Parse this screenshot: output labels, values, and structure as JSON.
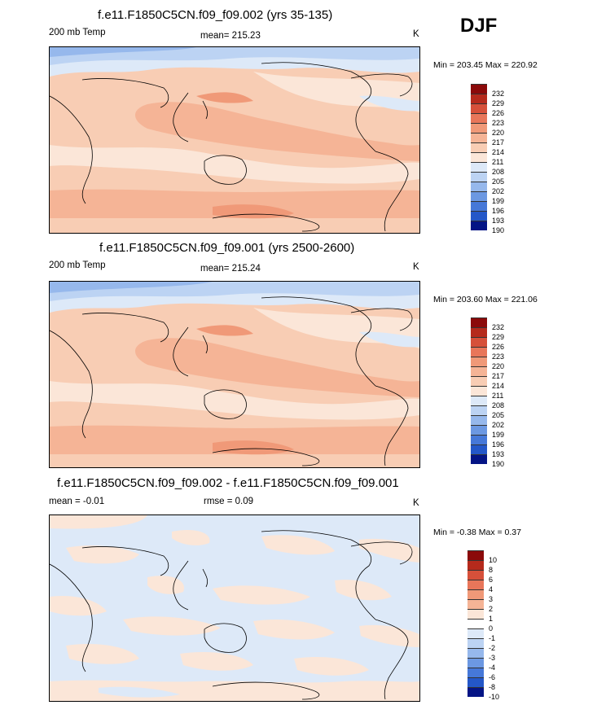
{
  "season": "DJF",
  "colors": {
    "warm": [
      "#fbe6d8",
      "#f8cdb4",
      "#f5b496",
      "#f09978",
      "#e8765a",
      "#d6503a",
      "#b52a1c",
      "#8b0a0a"
    ],
    "cool": [
      "#ffffff",
      "#dde9f8",
      "#bcd3f3",
      "#96b8ec",
      "#6c98e2",
      "#4678d8",
      "#2457c8",
      "#0b32a8",
      "#041485"
    ]
  },
  "panels": [
    {
      "title": "f.e11.F1850C5CN.f09_f09.002 (yrs 35-135)",
      "left_label": "200 mb Temp",
      "mean_label": "mean= 215.23",
      "units": "K",
      "minmax": "Min = 203.45 Max = 220.92",
      "colorbar_labels": [
        "232",
        "229",
        "226",
        "223",
        "220",
        "217",
        "214",
        "211",
        "208",
        "205",
        "202",
        "199",
        "196",
        "193",
        "190"
      ]
    },
    {
      "title": "f.e11.F1850C5CN.f09_f09.001 (yrs 2500-2600)",
      "left_label": "200 mb Temp",
      "mean_label": "mean= 215.24",
      "units": "K",
      "minmax": "Min = 203.60 Max = 221.06",
      "colorbar_labels": [
        "232",
        "229",
        "226",
        "223",
        "220",
        "217",
        "214",
        "211",
        "208",
        "205",
        "202",
        "199",
        "196",
        "193",
        "190"
      ]
    },
    {
      "title": "f.e11.F1850C5CN.f09_f09.002 - f.e11.F1850C5CN.f09_f09.001",
      "left_label": "mean =  -0.01",
      "mean_label": "rmse =   0.09",
      "units": "K",
      "minmax": "Min =  -0.38 Max =   0.37",
      "colorbar_labels": [
        "10",
        "8",
        "6",
        "4",
        "3",
        "2",
        "1",
        "0",
        "-1",
        "-2",
        "-3",
        "-4",
        "-6",
        "-8",
        "-10"
      ]
    }
  ]
}
